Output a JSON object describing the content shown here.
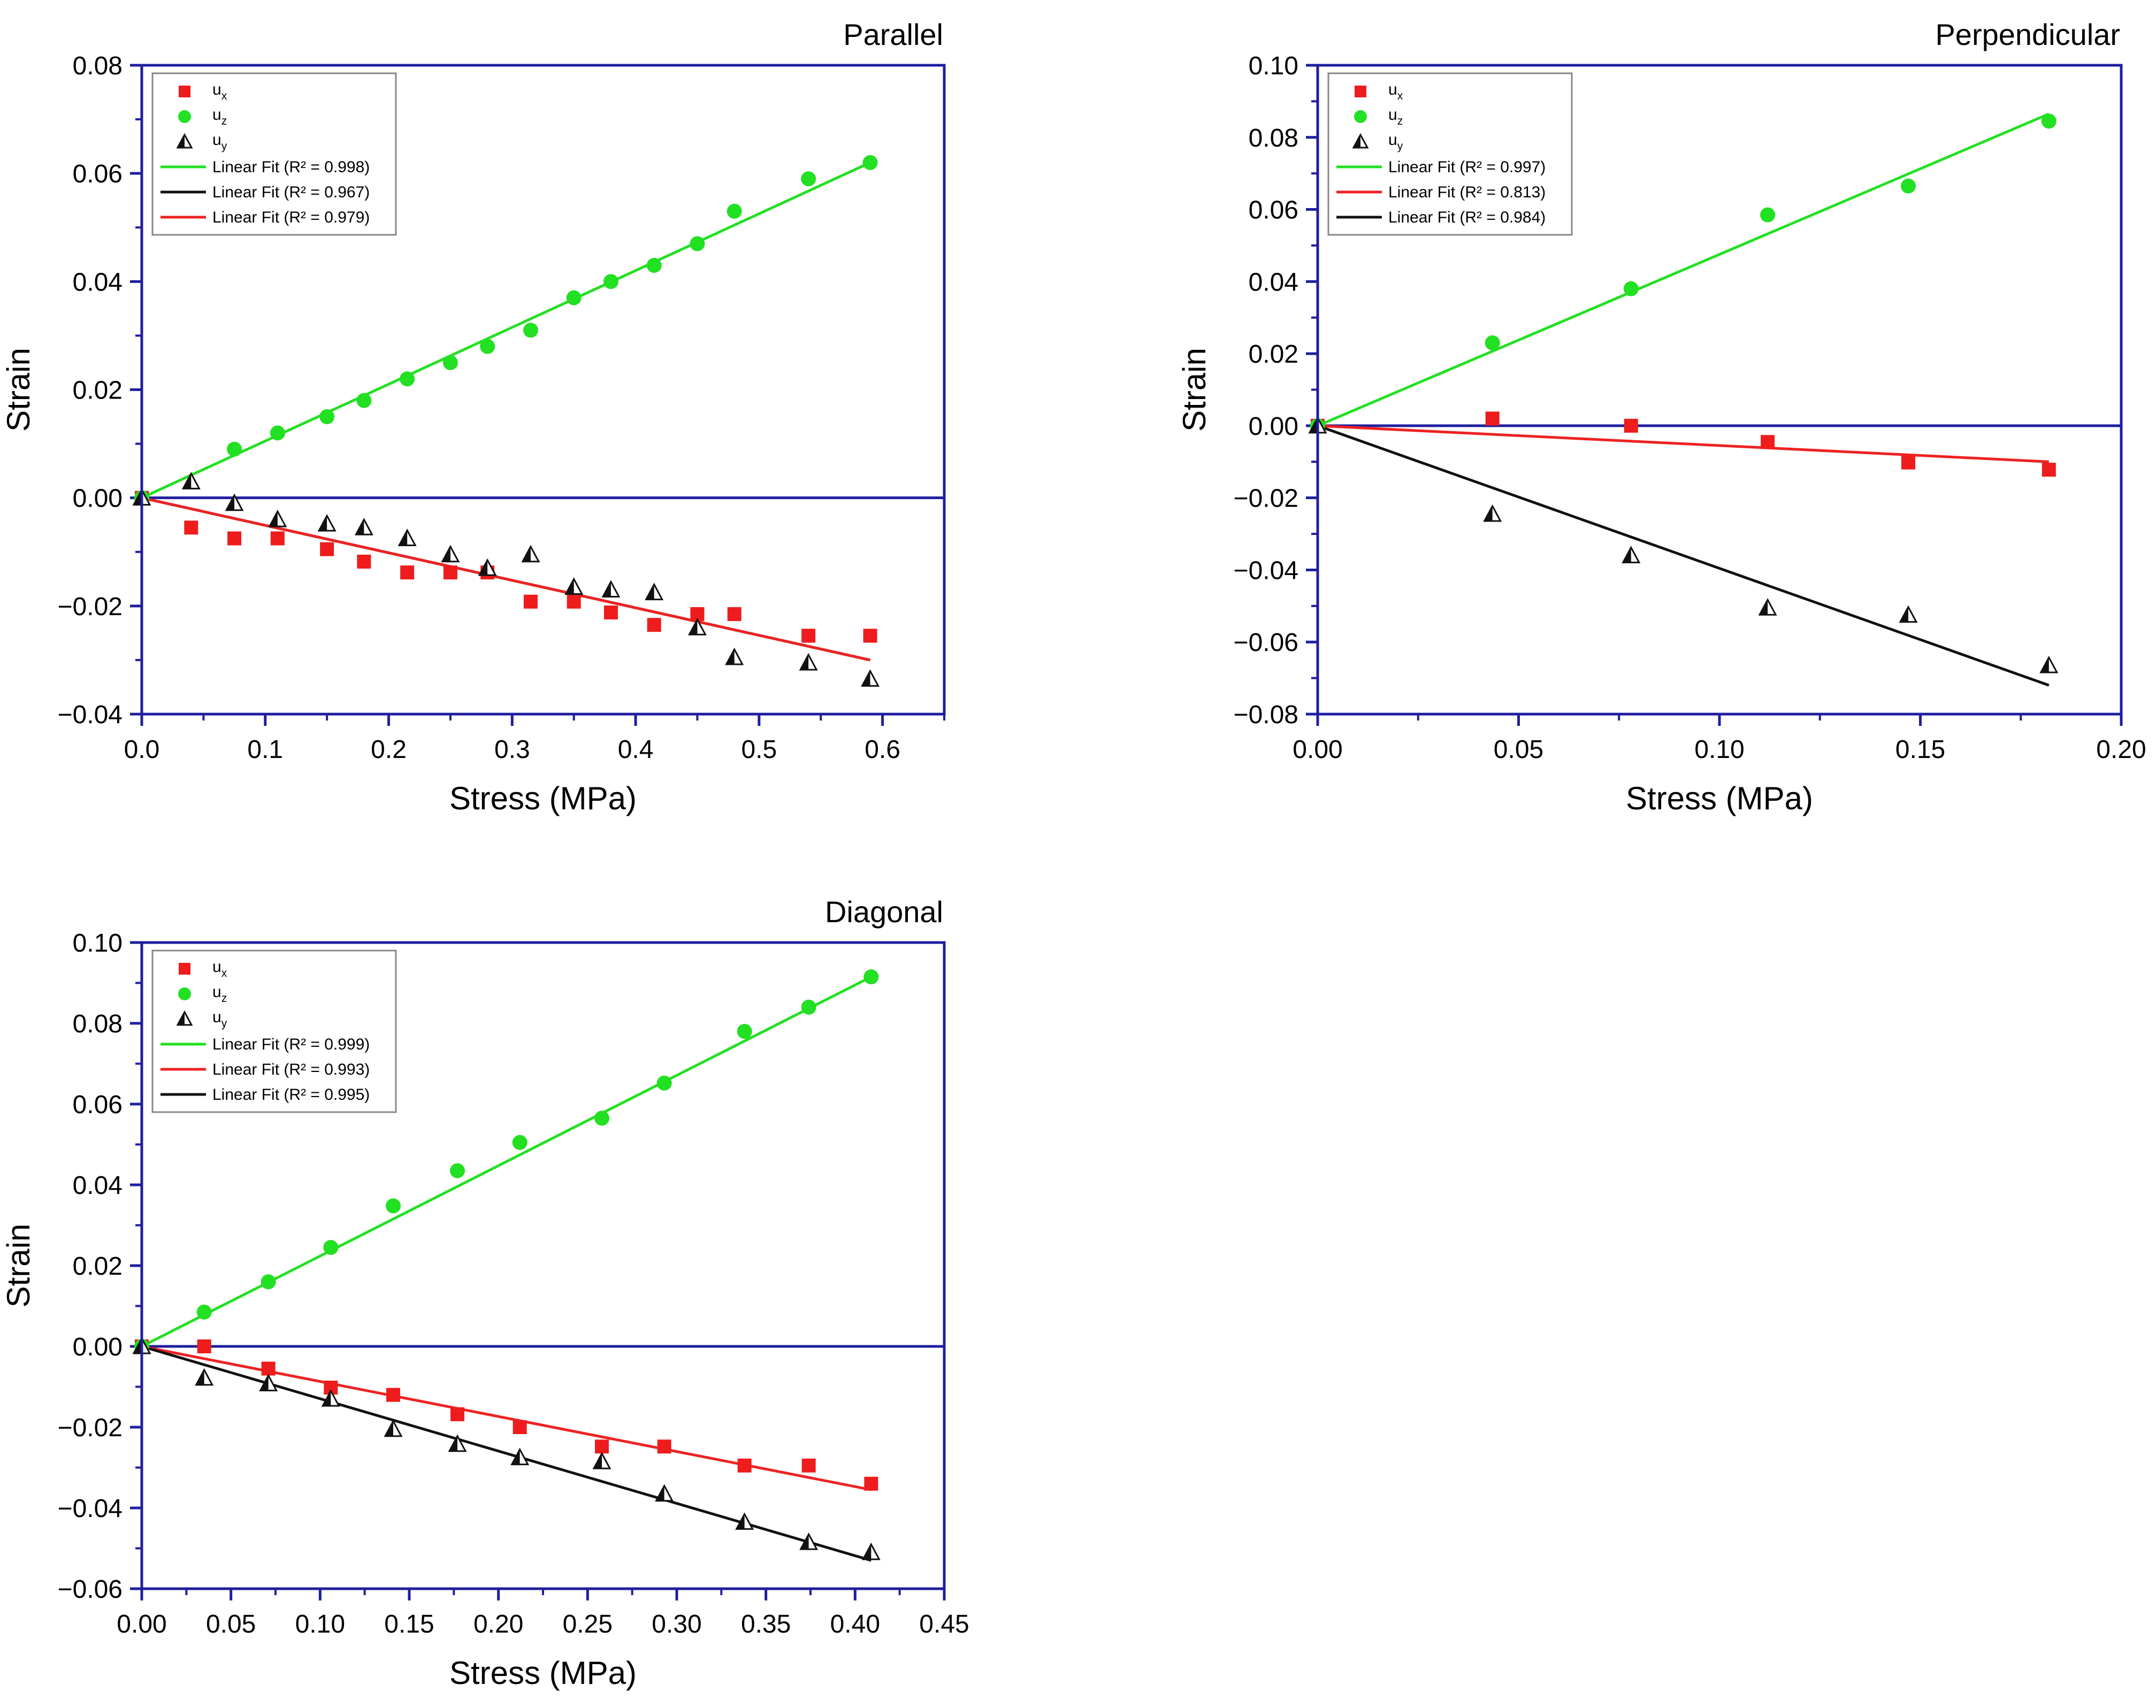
{
  "colors": {
    "frame": "#1f1fa0",
    "zero_line": "#1f1fa0",
    "ux": "#ee1c1c",
    "uz": "#22e022",
    "uy": "#111111",
    "fit_green": "#22e022",
    "fit_red": "#ee2222",
    "fit_black": "#111111"
  },
  "chart_data": [
    {
      "type": "scatter",
      "title": "Parallel",
      "xlabel": "Stress (MPa)",
      "ylabel": "Strain",
      "xlim": [
        0,
        0.65
      ],
      "ylim": [
        -0.04,
        0.08
      ],
      "xticks": [
        "0.0",
        "0.1",
        "0.2",
        "0.3",
        "0.4",
        "0.5",
        "0.6"
      ],
      "xtick_values": [
        0,
        0.1,
        0.2,
        0.3,
        0.4,
        0.5,
        0.6
      ],
      "yticks": [
        "−0.04",
        "−0.02",
        "0.00",
        "0.02",
        "0.04",
        "0.06",
        "0.08"
      ],
      "ytick_values": [
        -0.04,
        -0.02,
        0,
        0.02,
        0.04,
        0.06,
        0.08
      ],
      "legend_position": "top-left",
      "series": [
        {
          "name": "ux",
          "label_base": "u",
          "label_sub": "x",
          "marker": "square",
          "color_key": "ux",
          "x": [
            0,
            0.04,
            0.075,
            0.11,
            0.15,
            0.18,
            0.215,
            0.25,
            0.28,
            0.315,
            0.35,
            0.38,
            0.415,
            0.45,
            0.48,
            0.54,
            0.59
          ],
          "y": [
            0,
            -0.0055,
            -0.0075,
            -0.0075,
            -0.0095,
            -0.0118,
            -0.0138,
            -0.0138,
            -0.0138,
            -0.0192,
            -0.0192,
            -0.0212,
            -0.0235,
            -0.0215,
            -0.0215,
            -0.0255,
            -0.0255
          ]
        },
        {
          "name": "uz",
          "label_base": "u",
          "label_sub": "z",
          "marker": "circle",
          "color_key": "uz",
          "x": [
            0,
            0.075,
            0.11,
            0.15,
            0.18,
            0.215,
            0.25,
            0.28,
            0.315,
            0.35,
            0.38,
            0.415,
            0.45,
            0.48,
            0.54,
            0.59
          ],
          "y": [
            0,
            0.009,
            0.012,
            0.015,
            0.018,
            0.022,
            0.025,
            0.028,
            0.031,
            0.037,
            0.04,
            0.043,
            0.047,
            0.053,
            0.059,
            0.062
          ]
        },
        {
          "name": "uy",
          "label_base": "u",
          "label_sub": "y",
          "marker": "half-triangle",
          "color_key": "uy",
          "x": [
            0,
            0.04,
            0.075,
            0.11,
            0.15,
            0.18,
            0.215,
            0.25,
            0.28,
            0.315,
            0.35,
            0.38,
            0.415,
            0.45,
            0.48,
            0.54,
            0.59
          ],
          "y": [
            0,
            0.003,
            -0.001,
            -0.004,
            -0.0048,
            -0.0055,
            -0.0075,
            -0.0105,
            -0.013,
            -0.0105,
            -0.0165,
            -0.017,
            -0.0175,
            -0.024,
            -0.0295,
            -0.0305,
            -0.0335
          ]
        }
      ],
      "fits": [
        {
          "label": "Linear Fit (R² = 0.998)",
          "color_key": "fit_green",
          "x": [
            0,
            0.59
          ],
          "y": [
            0,
            0.062
          ]
        },
        {
          "label": "Linear Fit (R² = 0.967)",
          "color_key": "fit_black",
          "x": [
            0,
            0.59
          ],
          "y": [
            0,
            -0.03
          ]
        },
        {
          "label": "Linear Fit (R² = 0.979)",
          "color_key": "fit_red",
          "x": [
            0,
            0.59
          ],
          "y": [
            0,
            -0.03
          ]
        }
      ]
    },
    {
      "type": "scatter",
      "title": "Perpendicular",
      "xlabel": "Stress (MPa)",
      "ylabel": "Strain",
      "xlim": [
        0,
        0.2
      ],
      "ylim": [
        -0.08,
        0.1
      ],
      "xticks": [
        "0.00",
        "0.05",
        "0.10",
        "0.15",
        "0.20"
      ],
      "xtick_values": [
        0,
        0.05,
        0.1,
        0.15,
        0.2
      ],
      "yticks": [
        "−0.08",
        "−0.06",
        "−0.04",
        "−0.02",
        "0.00",
        "0.02",
        "0.04",
        "0.06",
        "0.08",
        "0.10"
      ],
      "ytick_values": [
        -0.08,
        -0.06,
        -0.04,
        -0.02,
        0,
        0.02,
        0.04,
        0.06,
        0.08,
        0.1
      ],
      "legend_position": "top-left",
      "series": [
        {
          "name": "ux",
          "label_base": "u",
          "label_sub": "x",
          "marker": "square",
          "color_key": "ux",
          "x": [
            0,
            0.0435,
            0.078,
            0.112,
            0.147,
            0.182
          ],
          "y": [
            0,
            0.002,
            0,
            -0.0045,
            -0.0102,
            -0.0122
          ]
        },
        {
          "name": "uz",
          "label_base": "u",
          "label_sub": "z",
          "marker": "circle",
          "color_key": "uz",
          "x": [
            0,
            0.0435,
            0.078,
            0.112,
            0.147,
            0.182
          ],
          "y": [
            0,
            0.023,
            0.038,
            0.0585,
            0.0665,
            0.0845
          ]
        },
        {
          "name": "uy",
          "label_base": "u",
          "label_sub": "y",
          "marker": "half-triangle",
          "color_key": "uy",
          "x": [
            0,
            0.0435,
            0.078,
            0.112,
            0.147,
            0.182
          ],
          "y": [
            0,
            -0.0245,
            -0.036,
            -0.0505,
            -0.0525,
            -0.0665
          ]
        }
      ],
      "fits": [
        {
          "label": "Linear Fit (R² = 0.997)",
          "color_key": "fit_green",
          "x": [
            0,
            0.182
          ],
          "y": [
            0,
            0.0865
          ]
        },
        {
          "label": "Linear Fit (R² = 0.813)",
          "color_key": "fit_red",
          "x": [
            0,
            0.182
          ],
          "y": [
            0,
            -0.01
          ]
        },
        {
          "label": "Linear Fit (R² = 0.984)",
          "color_key": "fit_black",
          "x": [
            0,
            0.182
          ],
          "y": [
            0,
            -0.072
          ]
        }
      ]
    },
    {
      "type": "scatter",
      "title": "Diagonal",
      "xlabel": "Stress (MPa)",
      "ylabel": "Strain",
      "xlim": [
        0,
        0.45
      ],
      "ylim": [
        -0.06,
        0.1
      ],
      "xticks": [
        "0.00",
        "0.05",
        "0.10",
        "0.15",
        "0.20",
        "0.25",
        "0.30",
        "0.35",
        "0.40",
        "0.45"
      ],
      "xtick_values": [
        0,
        0.05,
        0.1,
        0.15,
        0.2,
        0.25,
        0.3,
        0.35,
        0.4,
        0.45
      ],
      "yticks": [
        "−0.06",
        "−0.04",
        "−0.02",
        "0.00",
        "0.02",
        "0.04",
        "0.06",
        "0.08",
        "0.10"
      ],
      "ytick_values": [
        -0.06,
        -0.04,
        -0.02,
        0,
        0.02,
        0.04,
        0.06,
        0.08,
        0.1
      ],
      "legend_position": "top-left",
      "series": [
        {
          "name": "ux",
          "label_base": "u",
          "label_sub": "x",
          "marker": "square",
          "color_key": "ux",
          "x": [
            0,
            0.035,
            0.071,
            0.106,
            0.141,
            0.177,
            0.212,
            0.258,
            0.293,
            0.338,
            0.374,
            0.409
          ],
          "y": [
            0,
            0,
            -0.0055,
            -0.0102,
            -0.012,
            -0.0168,
            -0.02,
            -0.0248,
            -0.0248,
            -0.0295,
            -0.0295,
            -0.034
          ]
        },
        {
          "name": "uz",
          "label_base": "u",
          "label_sub": "z",
          "marker": "circle",
          "color_key": "uz",
          "x": [
            0,
            0.035,
            0.071,
            0.106,
            0.141,
            0.177,
            0.212,
            0.258,
            0.293,
            0.338,
            0.374,
            0.409
          ],
          "y": [
            0,
            0.0085,
            0.016,
            0.0245,
            0.0348,
            0.0435,
            0.0505,
            0.0565,
            0.0652,
            0.078,
            0.084,
            0.0915
          ]
        },
        {
          "name": "uy",
          "label_base": "u",
          "label_sub": "y",
          "marker": "half-triangle",
          "color_key": "uy",
          "x": [
            0,
            0.035,
            0.071,
            0.106,
            0.141,
            0.177,
            0.212,
            0.258,
            0.293,
            0.338,
            0.374,
            0.409
          ],
          "y": [
            0,
            -0.0078,
            -0.0092,
            -0.013,
            -0.0205,
            -0.0242,
            -0.0275,
            -0.0285,
            -0.0365,
            -0.0435,
            -0.0485,
            -0.051
          ]
        }
      ],
      "fits": [
        {
          "label": "Linear Fit (R² = 0.999)",
          "color_key": "fit_green",
          "x": [
            0,
            0.409
          ],
          "y": [
            0,
            0.0915
          ]
        },
        {
          "label": "Linear Fit (R² = 0.993)",
          "color_key": "fit_red",
          "x": [
            0,
            0.409
          ],
          "y": [
            0,
            -0.0355
          ]
        },
        {
          "label": "Linear Fit (R² = 0.995)",
          "color_key": "fit_black",
          "x": [
            0,
            0.409
          ],
          "y": [
            0,
            -0.053
          ]
        }
      ]
    }
  ]
}
